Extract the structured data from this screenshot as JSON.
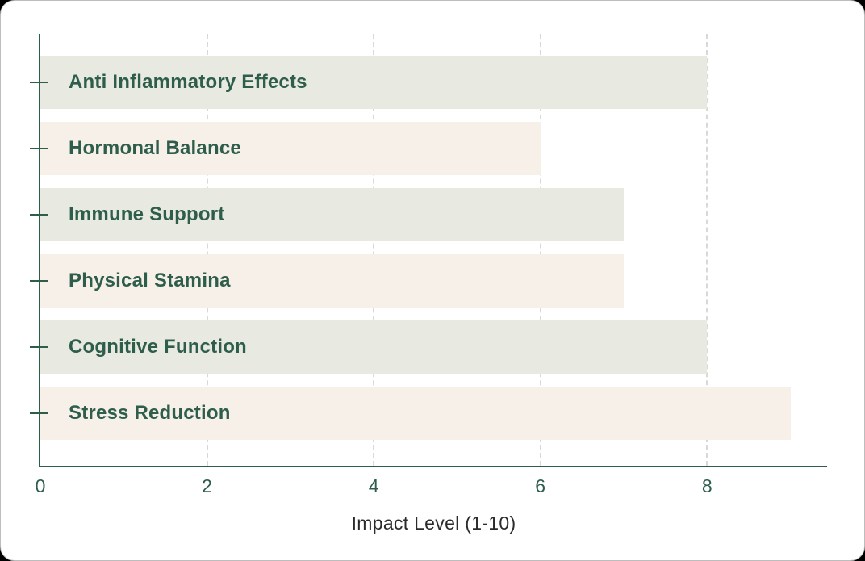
{
  "page": {
    "background_color": "#000000",
    "card_background_color": "#ffffff"
  },
  "chart_data": {
    "type": "bar",
    "orientation": "horizontal",
    "title": "",
    "xlabel": "Impact Level (1-10)",
    "ylabel": "",
    "categories": [
      "Anti Inflammatory Effects",
      "Hormonal Balance",
      "Immune Support",
      "Physical Stamina",
      "Cognitive Function",
      "Stress Reduction"
    ],
    "values": [
      8,
      6,
      7,
      7,
      8,
      9
    ],
    "bar_colors": [
      "#e8e9e0",
      "#f6f0e8",
      "#e8e9e0",
      "#f6f0e8",
      "#e8e9e0",
      "#f6f0e8"
    ],
    "xticks": [
      0,
      2,
      4,
      6,
      8
    ],
    "xlim": [
      0,
      9.44
    ],
    "grid": "vertical dashed gridlines at xticks greater than 0",
    "legend": "none",
    "colors": {
      "axis": "#2e5e4b",
      "bar_label_text": "#2e5e4b",
      "tick_text": "#2e5e4b",
      "xlabel_text": "#2b2b2b",
      "gridline": "#d9d9d9"
    }
  }
}
